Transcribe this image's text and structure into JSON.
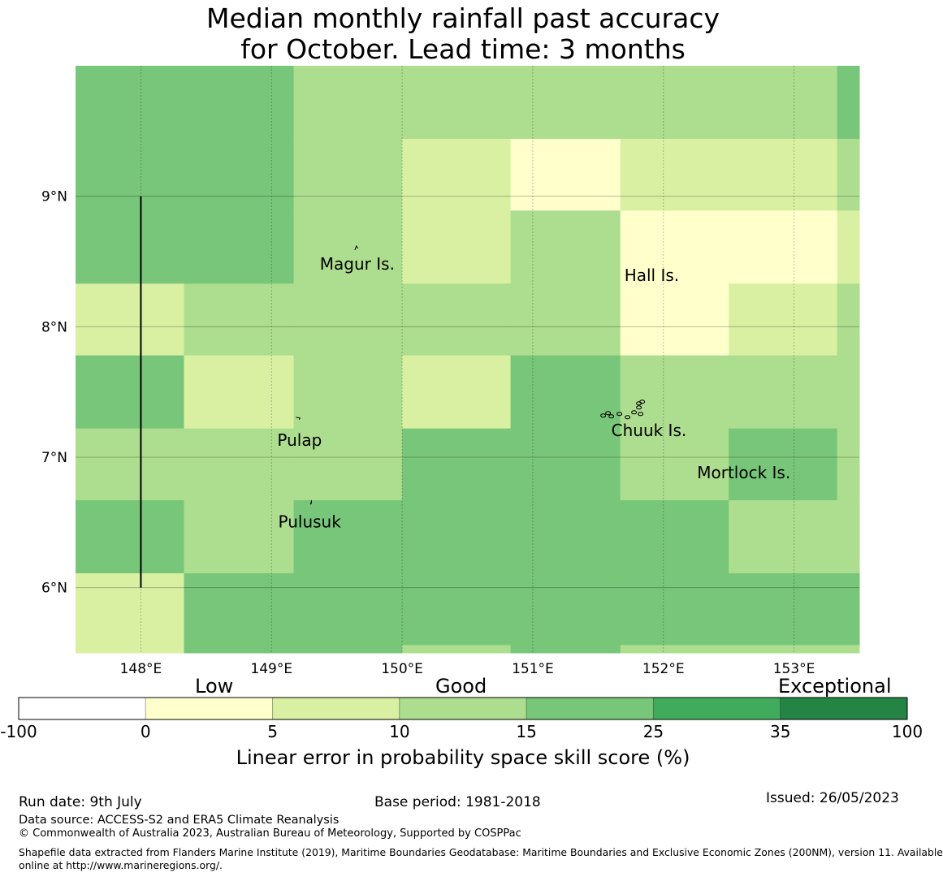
{
  "title": {
    "line1": "Median monthly rainfall past accuracy",
    "line2": "for October. Lead time: 3 months"
  },
  "colors": {
    "c_0_5": "#ffffcc",
    "c_5_10": "#d9f0a3",
    "c_10_15": "#addd8e",
    "c_15_25": "#78c679",
    "c_25_35": "#41ab5d",
    "c_35_100": "#238443",
    "c_neg": "#ffffff"
  },
  "map": {
    "lon_range": [
      147.5,
      153.5
    ],
    "lat_range": [
      5.5,
      10.0
    ],
    "lon_ticks": [
      {
        "value": 148,
        "label": "148°E"
      },
      {
        "value": 149,
        "label": "149°E"
      },
      {
        "value": 150,
        "label": "150°E"
      },
      {
        "value": 151,
        "label": "151°E"
      },
      {
        "value": 152,
        "label": "152°E"
      },
      {
        "value": 153,
        "label": "153°E"
      }
    ],
    "lat_ticks": [
      {
        "value": 9,
        "label": "9°N"
      },
      {
        "value": 8,
        "label": "8°N"
      },
      {
        "value": 7,
        "label": "7°N"
      },
      {
        "value": 6,
        "label": "6°N"
      }
    ],
    "grid": {
      "lon_edges": [
        147.5,
        148.33,
        149.17,
        150.0,
        150.83,
        151.67,
        152.5,
        153.33,
        153.5
      ],
      "lat_edges": [
        10.0,
        9.44,
        8.89,
        8.33,
        7.78,
        7.22,
        6.67,
        6.11,
        5.56,
        5.5
      ],
      "cells": [
        [
          "c_15_25",
          "c_15_25",
          "c_10_15",
          "c_10_15",
          "c_10_15",
          "c_10_15",
          "c_10_15",
          "c_15_25"
        ],
        [
          "c_15_25",
          "c_15_25",
          "c_10_15",
          "c_5_10",
          "c_0_5",
          "c_5_10",
          "c_5_10",
          "c_10_15"
        ],
        [
          "c_15_25",
          "c_15_25",
          "c_10_15",
          "c_5_10",
          "c_10_15",
          "c_0_5",
          "c_0_5",
          "c_5_10"
        ],
        [
          "c_5_10",
          "c_10_15",
          "c_10_15",
          "c_10_15",
          "c_10_15",
          "c_0_5",
          "c_5_10",
          "c_10_15"
        ],
        [
          "c_15_25",
          "c_5_10",
          "c_10_15",
          "c_5_10",
          "c_15_25",
          "c_10_15",
          "c_10_15",
          "c_10_15"
        ],
        [
          "c_10_15",
          "c_10_15",
          "c_10_15",
          "c_15_25",
          "c_15_25",
          "c_10_15",
          "c_15_25",
          "c_10_15"
        ],
        [
          "c_15_25",
          "c_10_15",
          "c_15_25",
          "c_15_25",
          "c_15_25",
          "c_15_25",
          "c_10_15",
          "c_10_15"
        ],
        [
          "c_5_10",
          "c_15_25",
          "c_15_25",
          "c_15_25",
          "c_15_25",
          "c_15_25",
          "c_15_25",
          "c_15_25"
        ],
        [
          "c_5_10",
          "c_15_25",
          "c_15_25",
          "c_10_15",
          "c_15_25",
          "c_10_15",
          "c_10_15",
          "c_10_15"
        ]
      ]
    },
    "boundary_line": {
      "lon": 148.0,
      "lat_from": 6.0,
      "lat_to": 9.0
    },
    "islands": [
      {
        "name": "Magur Is.",
        "lon": 149.65,
        "lat": 8.55
      },
      {
        "name": "Hall Is.",
        "lon": 151.95,
        "lat": 8.5
      },
      {
        "name": "Pulap",
        "lon": 149.2,
        "lat": 7.25
      },
      {
        "name": "Chuuk Is.",
        "lon": 151.85,
        "lat": 7.35
      },
      {
        "name": "Mortlock Is.",
        "lon": 152.6,
        "lat": 6.95
      },
      {
        "name": "Pulusuk",
        "lon": 149.3,
        "lat": 6.6
      }
    ]
  },
  "colorbar": {
    "categories": {
      "low": "Low",
      "good": "Good",
      "exceptional": "Exceptional"
    },
    "segments": [
      {
        "from": "-100",
        "to": "0",
        "color": "c_neg"
      },
      {
        "from": "0",
        "to": "5",
        "color": "c_0_5"
      },
      {
        "from": "5",
        "to": "10",
        "color": "c_5_10"
      },
      {
        "from": "10",
        "to": "15",
        "color": "c_10_15"
      },
      {
        "from": "15",
        "to": "25",
        "color": "c_15_25"
      },
      {
        "from": "25",
        "to": "35",
        "color": "c_25_35"
      },
      {
        "from": "35",
        "to": "100",
        "color": "c_35_100"
      }
    ],
    "tick_labels": [
      "-100",
      "0",
      "5",
      "10",
      "15",
      "25",
      "35",
      "100"
    ],
    "xlabel": "Linear error in probability space skill score (%)"
  },
  "footer": {
    "run_date": "Run date: 9th July",
    "base_period": "Base period: 1981-2018",
    "issued": "Issued: 26/05/2023",
    "data_source": "Data source: ACCESS-S2 and ERA5 Climate Reanalysis",
    "copyright": "© Commonwealth of Australia 2023, Australian Bureau of Meteorology, Supported by COSPPac",
    "shapefile_line1": "Shapefile data extracted from Flanders Marine Institute (2019), Maritime Boundaries Geodatabase: Maritime Boundaries and Exclusive Economic Zones (200NM), version 11. Available",
    "shapefile_line2": "online at http://www.marineregions.org/."
  }
}
